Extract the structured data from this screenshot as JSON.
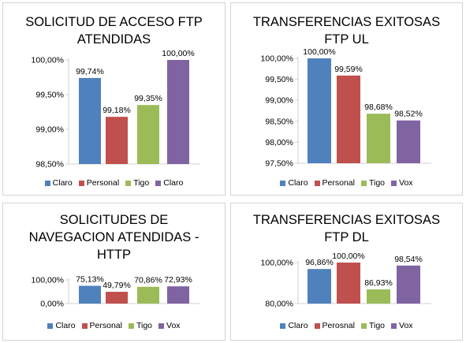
{
  "chart_data": [
    {
      "type": "bar",
      "title": [
        "SOLICITUD DE ACCESO FTP",
        "ATENDIDAS"
      ],
      "categories": [
        "Claro",
        "Personal",
        "Tigo",
        "Claro"
      ],
      "values": [
        99.74,
        99.18,
        99.35,
        100.0
      ],
      "value_labels": [
        "99,74%",
        "99,18%",
        "99,35%",
        "100,00%"
      ],
      "colors": [
        "#4f81bd",
        "#c0504d",
        "#9bbb59",
        "#8064a2"
      ],
      "ylim": [
        98.5,
        100.0
      ],
      "yticks": [
        98.5,
        99.0,
        99.5,
        100.0
      ],
      "ytick_labels": [
        "98,50%",
        "99,00%",
        "99,50%",
        "100,00%"
      ],
      "grid": false,
      "legend": "bottom"
    },
    {
      "type": "bar",
      "title": [
        "TRANSFERENCIAS EXITOSAS",
        "FTP UL"
      ],
      "categories": [
        "Claro",
        "Personal",
        "Tigo",
        "Vox"
      ],
      "values": [
        100.0,
        99.59,
        98.68,
        98.52
      ],
      "value_labels": [
        "100,00%",
        "99,59%",
        "98,68%",
        "98,52%"
      ],
      "colors": [
        "#4f81bd",
        "#c0504d",
        "#9bbb59",
        "#8064a2"
      ],
      "ylim": [
        97.5,
        100.0
      ],
      "yticks": [
        97.5,
        98.0,
        98.5,
        99.0,
        99.5,
        100.0
      ],
      "ytick_labels": [
        "97,50%",
        "98,00%",
        "98,50%",
        "99,00%",
        "99,50%",
        "100,00%"
      ],
      "grid": false,
      "legend": "bottom"
    },
    {
      "type": "bar",
      "title": [
        "SOLICITUDES DE",
        "NAVEGACION ATENDIDAS -",
        "HTTP"
      ],
      "categories": [
        "Claro",
        "Personal",
        "Tigo",
        "Vox"
      ],
      "values": [
        75.13,
        49.79,
        70.86,
        72.93
      ],
      "value_labels": [
        "75,13%",
        "49,79%",
        "70,86%",
        "72,93%"
      ],
      "colors": [
        "#4f81bd",
        "#c0504d",
        "#9bbb59",
        "#8064a2"
      ],
      "ylim": [
        0,
        100.0
      ],
      "yticks": [
        0,
        100.0
      ],
      "ytick_labels": [
        "0,00%",
        "100,00%"
      ],
      "grid": false,
      "legend": "bottom"
    },
    {
      "type": "bar",
      "title": [
        "TRANSFERENCIAS EXITOSAS",
        "FTP DL"
      ],
      "categories": [
        "Claro",
        "Perosnal",
        "Tigo",
        "Vox"
      ],
      "values": [
        96.86,
        100.0,
        86.93,
        98.54
      ],
      "value_labels": [
        "96,86%",
        "100,00%",
        "86,93%",
        "98,54%"
      ],
      "colors": [
        "#4f81bd",
        "#c0504d",
        "#9bbb59",
        "#8064a2"
      ],
      "ylim": [
        80.0,
        100.0
      ],
      "yticks": [
        80.0,
        100.0
      ],
      "ytick_labels": [
        "80,00%",
        "100,00%"
      ],
      "grid": false,
      "legend": "bottom"
    }
  ]
}
